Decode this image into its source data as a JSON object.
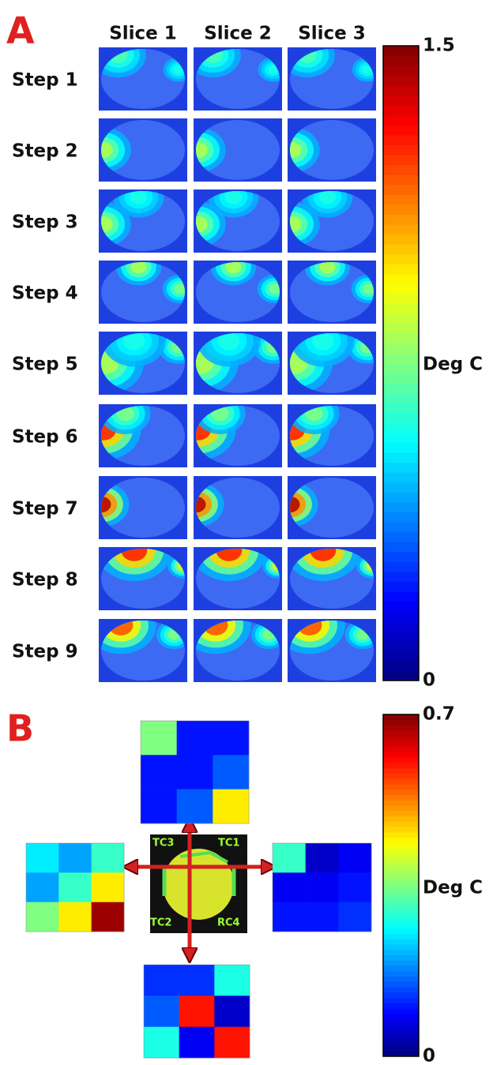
{
  "panel_a": {
    "label": "A",
    "columns": [
      "Slice 1",
      "Slice 2",
      "Slice 3"
    ],
    "rows": [
      "Step 1",
      "Step 2",
      "Step 3",
      "Step 4",
      "Step 5",
      "Step 6",
      "Step 7",
      "Step 8",
      "Step 9"
    ],
    "colorbar": {
      "lim": [
        0,
        1.5
      ],
      "ticks": [
        0,
        1.5
      ],
      "label": "Deg C"
    }
  },
  "panel_b": {
    "label": "B",
    "probes": [
      "TC3",
      "TC1",
      "TC2",
      "RC4"
    ],
    "grids": [
      {
        "position": "top",
        "values": [
          [
            0.35,
            0.1,
            0.1
          ],
          [
            0.1,
            0.1,
            0.15
          ],
          [
            0.1,
            0.15,
            0.45
          ]
        ]
      },
      {
        "position": "left",
        "values": [
          [
            0.25,
            0.2,
            0.3
          ],
          [
            0.2,
            0.3,
            0.45
          ],
          [
            0.35,
            0.45,
            0.68
          ]
        ]
      },
      {
        "position": "right",
        "values": [
          [
            0.3,
            0.05,
            0.08
          ],
          [
            0.08,
            0.08,
            0.1
          ],
          [
            0.1,
            0.1,
            0.12
          ]
        ]
      },
      {
        "position": "bottom",
        "values": [
          [
            0.12,
            0.12,
            0.28
          ],
          [
            0.15,
            0.6,
            0.05
          ],
          [
            0.28,
            0.08,
            0.6
          ]
        ]
      }
    ],
    "colorbar": {
      "lim": [
        0,
        0.7
      ],
      "ticks": [
        0,
        0.7
      ],
      "label": "Deg C"
    }
  }
}
